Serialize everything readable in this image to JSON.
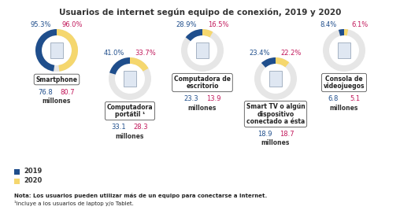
{
  "title": "Usuarios de internet según equipo de conexión, 2019 y 2020",
  "series": [
    {
      "name": "2019",
      "color": "#1f4e8c"
    },
    {
      "name": "2020",
      "color": "#f5d76e"
    }
  ],
  "notes": [
    "Nota: Los usuarios pueden utilizar más de un equipo para conectarse a Internet.",
    "¹Incluye a los usuarios de laptop y/o Tablet."
  ],
  "chart_data": [
    {
      "type": "donut",
      "title": "Smartphone",
      "categories": [
        "2019",
        "2020"
      ],
      "values": [
        95.3,
        96.0
      ],
      "value_labels": [
        "95.3%",
        "96.0%"
      ],
      "users": [
        76.8,
        80.7
      ],
      "users_unit": "millones"
    },
    {
      "type": "donut",
      "title": "Computadora portátil ¹",
      "categories": [
        "2019",
        "2020"
      ],
      "values": [
        41.0,
        33.7
      ],
      "value_labels": [
        "41.0%",
        "33.7%"
      ],
      "users": [
        33.1,
        28.3
      ],
      "users_unit": "millones"
    },
    {
      "type": "donut",
      "title": "Computadora de escritorio",
      "categories": [
        "2019",
        "2020"
      ],
      "values": [
        28.9,
        16.5
      ],
      "value_labels": [
        "28.9%",
        "16.5%"
      ],
      "users": [
        23.3,
        13.9
      ],
      "users_unit": "millones"
    },
    {
      "type": "donut",
      "title": "Smart TV o algún dispositivo conectado a ésta",
      "categories": [
        "2019",
        "2020"
      ],
      "values": [
        23.4,
        22.2
      ],
      "value_labels": [
        "23.4%",
        "22.2%"
      ],
      "users": [
        18.9,
        18.7
      ],
      "users_unit": "millones"
    },
    {
      "type": "donut",
      "title": "Consola de videojuegos",
      "categories": [
        "2019",
        "2020"
      ],
      "values": [
        8.4,
        6.1
      ],
      "value_labels": [
        "8.4%",
        "6.1%"
      ],
      "users": [
        6.8,
        5.1
      ],
      "users_unit": "millones"
    }
  ]
}
